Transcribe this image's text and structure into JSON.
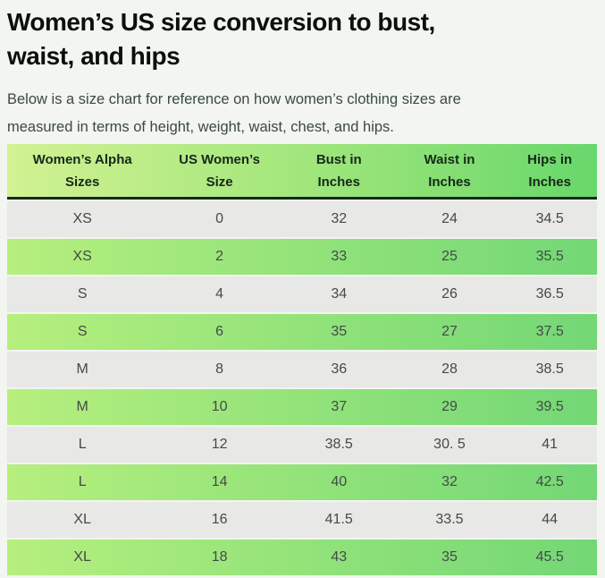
{
  "page": {
    "title_line1": "Women’s US size conversion to bust,",
    "title_line2": "waist, and hips",
    "description_line1": "Below is a size chart for reference on how women’s clothing sizes are",
    "description_line2": "measured in terms of height, weight, waist, chest, and hips."
  },
  "table": {
    "columns": [
      {
        "line1": "Women’s Alpha",
        "line2": "Sizes"
      },
      {
        "line1": "US Women’s",
        "line2": "Size"
      },
      {
        "line1": "Bust in",
        "line2": "Inches"
      },
      {
        "line1": "Waist in",
        "line2": "Inches"
      },
      {
        "line1": "Hips in",
        "line2": "Inches"
      }
    ],
    "rows": [
      {
        "alpha": "XS",
        "us_size": "0",
        "bust": "32",
        "waist": "24",
        "hips": "34.5"
      },
      {
        "alpha": "XS",
        "us_size": "2",
        "bust": "33",
        "waist": "25",
        "hips": "35.5"
      },
      {
        "alpha": "S",
        "us_size": "4",
        "bust": "34",
        "waist": "26",
        "hips": "36.5"
      },
      {
        "alpha": "S",
        "us_size": "6",
        "bust": "35",
        "waist": "27",
        "hips": "37.5"
      },
      {
        "alpha": "M",
        "us_size": "8",
        "bust": "36",
        "waist": "28",
        "hips": "38.5"
      },
      {
        "alpha": "M",
        "us_size": "10",
        "bust": "37",
        "waist": "29",
        "hips": "39.5"
      },
      {
        "alpha": "L",
        "us_size": "12",
        "bust": "38.5",
        "waist": "30. 5",
        "hips": "41"
      },
      {
        "alpha": "L",
        "us_size": "14",
        "bust": "40",
        "waist": "32",
        "hips": "42.5"
      },
      {
        "alpha": "XL",
        "us_size": "16",
        "bust": "41.5",
        "waist": "33.5",
        "hips": "44"
      },
      {
        "alpha": "XL",
        "us_size": "18",
        "bust": "43",
        "waist": "35",
        "hips": "45.5"
      }
    ],
    "colors": {
      "header_gradient_start": "#d2f292",
      "header_gradient_end": "#68d76b",
      "green_row_gradient_start": "#b6ef7e",
      "green_row_gradient_end": "#73d775",
      "gray_row": "#e8e9e6",
      "header_underline": "#15291b",
      "page_background": "#f2f5f0"
    }
  }
}
